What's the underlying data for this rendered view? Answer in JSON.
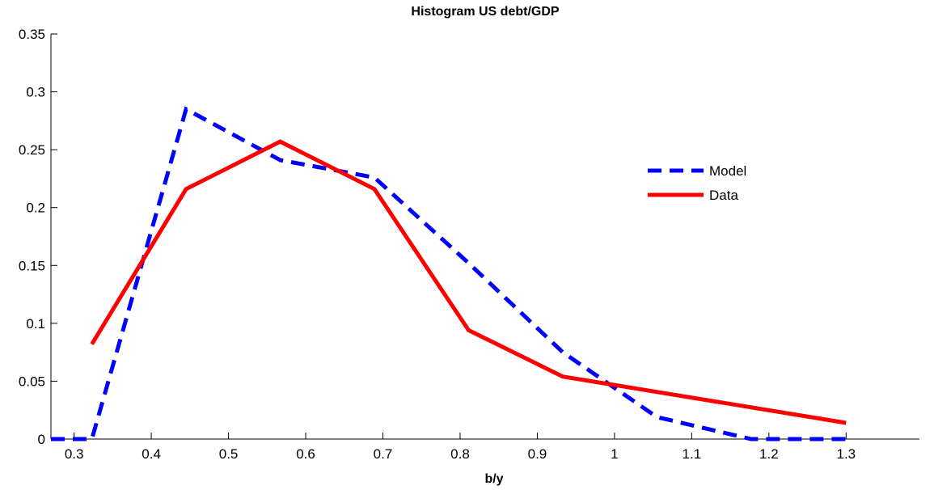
{
  "chart_data": {
    "type": "line",
    "title": "Histogram US debt/GDP",
    "xlabel": "b/y",
    "ylabel": "",
    "xlim": [
      0.27,
      1.395
    ],
    "ylim": [
      0,
      0.35
    ],
    "xticks": [
      0.3,
      0.4,
      0.5,
      0.6,
      0.7,
      0.8,
      0.9,
      1,
      1.1,
      1.2,
      1.3
    ],
    "xtick_labels": [
      "0.3",
      "0.4",
      "0.5",
      "0.6",
      "0.7",
      "0.8",
      "0.9",
      "1",
      "1.1",
      "1.2",
      "1.3"
    ],
    "yticks": [
      0,
      0.05,
      0.1,
      0.15,
      0.2,
      0.25,
      0.3,
      0.35
    ],
    "ytick_labels": [
      "0",
      "0.05",
      "0.1",
      "0.15",
      "0.2",
      "0.25",
      "0.3",
      "0.35"
    ],
    "grid": false,
    "legend_position": "right",
    "series": [
      {
        "name": "Model",
        "color": "#0000ff",
        "style": "dashed",
        "x": [
          0.27,
          0.323,
          0.445,
          0.567,
          0.689,
          0.811,
          0.933,
          1.055,
          1.177,
          1.3
        ],
        "y": [
          0,
          0,
          0.285,
          0.241,
          0.226,
          0.152,
          0.075,
          0.019,
          0,
          0
        ]
      },
      {
        "name": "Data",
        "color": "#ff0000",
        "style": "solid",
        "x": [
          0.323,
          0.445,
          0.567,
          0.689,
          0.811,
          0.933,
          1.3
        ],
        "y": [
          0.082,
          0.216,
          0.257,
          0.216,
          0.094,
          0.054,
          0.014
        ]
      }
    ]
  }
}
